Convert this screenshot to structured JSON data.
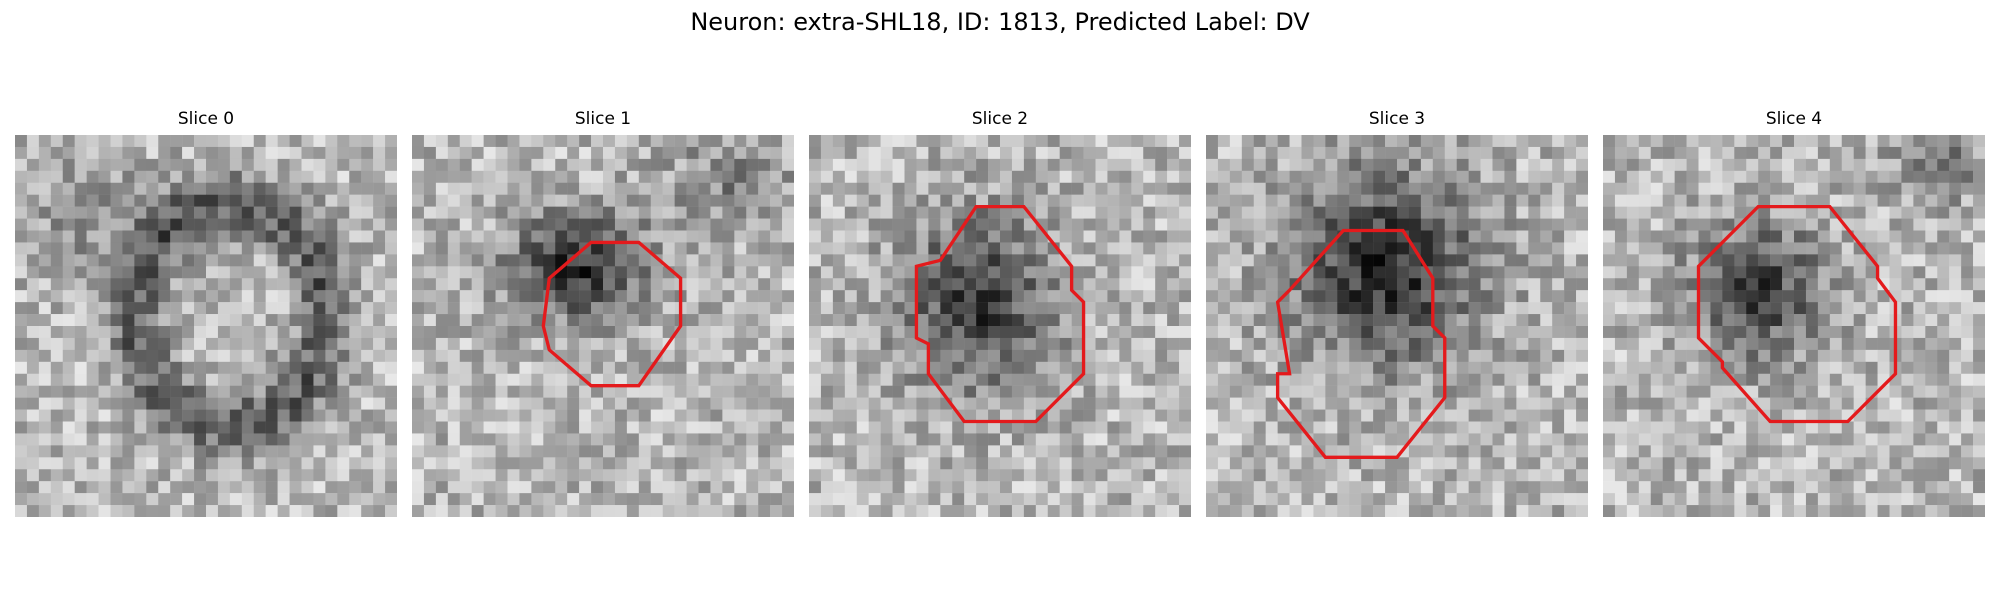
{
  "figure": {
    "title": "Neuron: extra-SHL18, ID: 1813, Predicted Label: DV"
  },
  "panels": [
    {
      "label": "Slice 0",
      "contour": false,
      "description": "Noisy grayscale microscopy patch with a faint ring-like dark structure"
    },
    {
      "label": "Slice 1",
      "contour": true,
      "description": "Dark nucleus centered, outlined by red octagonal contour"
    },
    {
      "label": "Slice 2",
      "contour": true,
      "description": "Dark nucleus centered, outlined by red irregular octagonal contour"
    },
    {
      "label": "Slice 3",
      "contour": true,
      "description": "Large dark blob upper-middle, red octagonal contour slightly below center"
    },
    {
      "label": "Slice 4",
      "contour": true,
      "description": "Dark nucleus centered-left, red octagonal contour"
    }
  ],
  "colors": {
    "contour": "#e41a1c",
    "background": "#ffffff"
  }
}
